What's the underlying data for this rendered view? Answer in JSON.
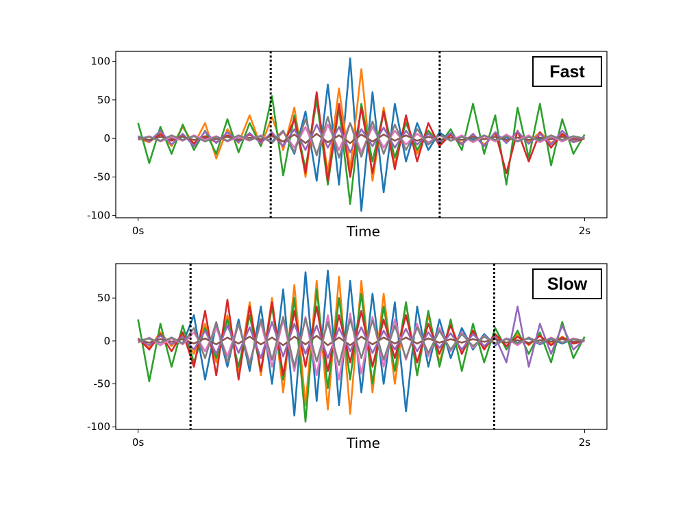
{
  "chart_data": [
    {
      "type": "line",
      "legend_label": "Fast",
      "legend_placement": "top-right",
      "xlabel": "Time",
      "x_tick_labels": [
        {
          "value": 0,
          "label": "0s"
        },
        {
          "value": 2,
          "label": "2s"
        }
      ],
      "y_ticks": [
        100,
        50,
        0,
        -50,
        -100
      ],
      "xlim": [
        -0.1,
        2.1
      ],
      "ylim": [
        -103,
        113
      ],
      "grid": false,
      "vlines": [
        0.594,
        1.351
      ],
      "vline_style": "dotted",
      "x": {
        "start": 0,
        "step": 0.05,
        "count": 41
      },
      "series": [
        {
          "color": "#1f77b4",
          "values": [
            0,
            2,
            -3,
            1,
            -2,
            3,
            -1,
            2,
            -3,
            1,
            -2,
            3,
            -4,
            10,
            -20,
            35,
            -55,
            70,
            -60,
            104,
            -94,
            60,
            -70,
            45,
            -30,
            20,
            -15,
            8,
            -3,
            2,
            -1,
            3,
            -2,
            1,
            -3,
            2,
            -1,
            2,
            -2,
            1,
            0
          ]
        },
        {
          "color": "#ff7f0e",
          "values": [
            0,
            -5,
            8,
            -10,
            15,
            -8,
            20,
            -26,
            12,
            -6,
            30,
            -10,
            28,
            -15,
            40,
            -50,
            55,
            -45,
            65,
            -40,
            90,
            -55,
            40,
            -35,
            25,
            -20,
            10,
            -5,
            4,
            -6,
            5,
            -8,
            6,
            -4,
            7,
            -5,
            8,
            -6,
            4,
            -3,
            0
          ]
        },
        {
          "color": "#2ca02c",
          "values": [
            20,
            -32,
            15,
            -20,
            18,
            -15,
            10,
            -20,
            25,
            -18,
            20,
            -10,
            55,
            -48,
            30,
            -40,
            50,
            -60,
            40,
            -85,
            45,
            -30,
            35,
            -25,
            20,
            -15,
            10,
            -8,
            12,
            -15,
            45,
            -20,
            30,
            -60,
            40,
            -25,
            45,
            -35,
            25,
            -20,
            5
          ]
        },
        {
          "color": "#d62728",
          "values": [
            2,
            -4,
            5,
            -3,
            4,
            -6,
            3,
            -5,
            4,
            -3,
            5,
            -4,
            6,
            -10,
            25,
            -45,
            60,
            -55,
            45,
            -50,
            40,
            -45,
            35,
            -40,
            30,
            -30,
            20,
            -10,
            5,
            -8,
            6,
            -10,
            8,
            -45,
            10,
            -30,
            8,
            -12,
            6,
            -5,
            0
          ]
        },
        {
          "color": "#9467bd",
          "values": [
            3,
            -4,
            10,
            -8,
            6,
            -10,
            9,
            -6,
            8,
            -5,
            7,
            -6,
            8,
            -10,
            12,
            -15,
            18,
            -12,
            15,
            -18,
            12,
            -10,
            14,
            -12,
            10,
            -8,
            6,
            -5,
            7,
            -8,
            6,
            -10,
            8,
            -6,
            9,
            -7,
            6,
            -8,
            10,
            -5,
            2
          ]
        },
        {
          "color": "#8c564b",
          "values": [
            1,
            -2,
            2,
            -1,
            2,
            -2,
            1,
            -1,
            2,
            -2,
            1,
            -1,
            3,
            -4,
            5,
            -6,
            6,
            -5,
            4,
            -6,
            5,
            -4,
            5,
            -3,
            4,
            -3,
            2,
            -2,
            1,
            -2,
            2,
            -1,
            2,
            -2,
            1,
            -2,
            1,
            -1,
            2,
            -1,
            0
          ]
        },
        {
          "color": "#e377c2",
          "values": [
            -2,
            3,
            -4,
            2,
            -3,
            4,
            -2,
            3,
            -4,
            2,
            -3,
            4,
            -5,
            8,
            -12,
            15,
            -20,
            18,
            -15,
            20,
            -18,
            15,
            -12,
            10,
            -8,
            6,
            -5,
            4,
            -3,
            4,
            -5,
            3,
            -4,
            5,
            -3,
            4,
            -5,
            3,
            -4,
            2,
            0
          ]
        },
        {
          "color": "#7f7f7f",
          "values": [
            -1,
            2,
            -3,
            4,
            -2,
            3,
            -4,
            2,
            -3,
            4,
            -2,
            3,
            -6,
            10,
            -18,
            25,
            -22,
            28,
            -25,
            20,
            -24,
            22,
            -20,
            18,
            -15,
            12,
            -8,
            5,
            -3,
            2,
            -3,
            4,
            -2,
            3,
            -4,
            2,
            -3,
            4,
            -2,
            3,
            0
          ]
        }
      ]
    },
    {
      "type": "line",
      "legend_label": "Slow",
      "legend_placement": "top-right",
      "xlabel": "Time",
      "x_tick_labels": [
        {
          "value": 0,
          "label": "0s"
        },
        {
          "value": 2,
          "label": "2s"
        }
      ],
      "y_ticks": [
        50,
        0,
        -50,
        -100
      ],
      "xlim": [
        -0.1,
        2.1
      ],
      "ylim": [
        -103,
        90
      ],
      "grid": false,
      "vlines": [
        0.235,
        1.595
      ],
      "vline_style": "dotted",
      "x": {
        "start": 0,
        "step": 0.05,
        "count": 41
      },
      "series": [
        {
          "color": "#1f77b4",
          "values": [
            0,
            3,
            -5,
            4,
            -3,
            30,
            -45,
            20,
            -30,
            25,
            -35,
            40,
            -50,
            60,
            -87,
            80,
            -70,
            82,
            -75,
            70,
            -60,
            55,
            -50,
            45,
            -82,
            40,
            -30,
            25,
            -20,
            15,
            -10,
            8,
            -5,
            3,
            -2,
            3,
            -4,
            2,
            -3,
            2,
            0
          ]
        },
        {
          "color": "#ff7f0e",
          "values": [
            2,
            -8,
            10,
            -6,
            8,
            -15,
            20,
            -25,
            30,
            -35,
            45,
            -40,
            50,
            -60,
            65,
            -75,
            70,
            -80,
            75,
            -85,
            70,
            -60,
            55,
            -50,
            45,
            -40,
            30,
            -25,
            20,
            -15,
            10,
            -8,
            5,
            -6,
            8,
            -5,
            6,
            -4,
            5,
            -3,
            0
          ]
        },
        {
          "color": "#2ca02c",
          "values": [
            25,
            -47,
            20,
            -30,
            18,
            -25,
            15,
            -20,
            25,
            -30,
            30,
            -35,
            40,
            -45,
            50,
            -94,
            60,
            -55,
            50,
            -45,
            55,
            -50,
            40,
            -35,
            45,
            -40,
            35,
            -30,
            25,
            -35,
            20,
            -25,
            15,
            -10,
            12,
            -15,
            10,
            -25,
            22,
            -20,
            5
          ]
        },
        {
          "color": "#d62728",
          "values": [
            3,
            -10,
            8,
            -12,
            10,
            -30,
            35,
            -40,
            48,
            -45,
            40,
            -35,
            45,
            -40,
            35,
            -30,
            40,
            -35,
            30,
            -25,
            35,
            -30,
            25,
            -20,
            30,
            -25,
            20,
            -15,
            18,
            -15,
            12,
            -10,
            8,
            -6,
            5,
            -4,
            6,
            -5,
            4,
            -3,
            0
          ]
        },
        {
          "color": "#9467bd",
          "values": [
            2,
            -5,
            6,
            -4,
            5,
            -10,
            12,
            -15,
            18,
            -14,
            16,
            -20,
            22,
            -18,
            20,
            -15,
            18,
            -20,
            15,
            -12,
            16,
            -14,
            12,
            -10,
            14,
            -12,
            10,
            -8,
            9,
            -10,
            8,
            -6,
            5,
            -25,
            40,
            -30,
            20,
            -15,
            18,
            -10,
            2
          ]
        },
        {
          "color": "#8c564b",
          "values": [
            1,
            -2,
            2,
            -1,
            2,
            -3,
            3,
            -4,
            4,
            -3,
            5,
            -4,
            4,
            -5,
            5,
            -4,
            6,
            -5,
            4,
            -5,
            5,
            -4,
            4,
            -3,
            4,
            -3,
            3,
            -2,
            2,
            -2,
            2,
            -1,
            2,
            -2,
            1,
            -2,
            1,
            -1,
            2,
            -1,
            0
          ]
        },
        {
          "color": "#e377c2",
          "values": [
            -2,
            4,
            -5,
            3,
            -4,
            10,
            -12,
            15,
            -18,
            20,
            -25,
            22,
            -30,
            25,
            -35,
            28,
            -40,
            30,
            -45,
            32,
            -38,
            28,
            -30,
            25,
            -22,
            20,
            -18,
            15,
            -12,
            10,
            -8,
            6,
            -4,
            3,
            -5,
            4,
            -3,
            4,
            -2,
            3,
            0
          ]
        },
        {
          "color": "#7f7f7f",
          "values": [
            -1,
            3,
            -2,
            4,
            -3,
            15,
            -20,
            22,
            -25,
            20,
            -28,
            25,
            -22,
            28,
            -30,
            26,
            -24,
            22,
            -28,
            25,
            -20,
            24,
            -22,
            18,
            -20,
            16,
            -14,
            12,
            -10,
            8,
            -6,
            5,
            -3,
            2,
            -3,
            4,
            -2,
            3,
            -2,
            2,
            0
          ]
        }
      ]
    }
  ]
}
